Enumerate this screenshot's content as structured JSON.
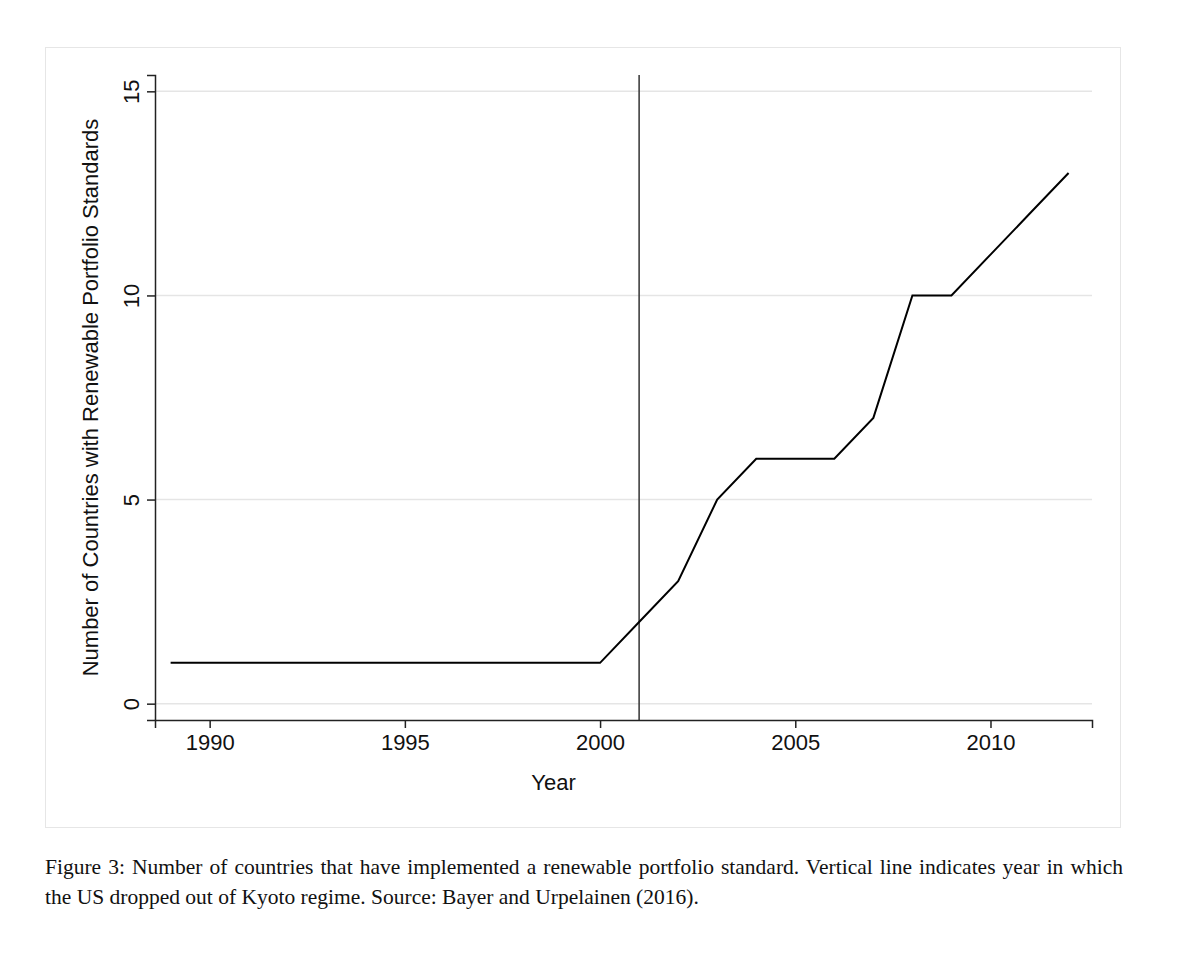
{
  "chart_data": {
    "type": "line",
    "x_label": "Year",
    "y_label": "Number of Countries with Renewable Portfolio Standards",
    "caption": "Figure 3: Number of countries that have implemented a renewable portfolio standard. Vertical line indicates year in which the US dropped out of Kyoto regime. Source: Bayer and Urpelainen (2016).",
    "x": [
      1989,
      1990,
      1991,
      1992,
      1993,
      1994,
      1995,
      1996,
      1997,
      1998,
      1999,
      2000,
      2001,
      2002,
      2003,
      2004,
      2005,
      2006,
      2007,
      2008,
      2009,
      2010,
      2011,
      2012
    ],
    "values": [
      1,
      1,
      1,
      1,
      1,
      1,
      1,
      1,
      1,
      1,
      1,
      1,
      2,
      3,
      5,
      6,
      6,
      6,
      7,
      10,
      10,
      11,
      12,
      13
    ],
    "color": "#000000",
    "vertical_line": 2001,
    "xlim": [
      1988.6,
      2012.6
    ],
    "xticks": [
      1990,
      1995,
      2000,
      2005,
      2010
    ],
    "ylim": [
      -0.4,
      15.4
    ],
    "yticks": [
      0,
      5,
      10,
      15
    ],
    "grid": true
  }
}
